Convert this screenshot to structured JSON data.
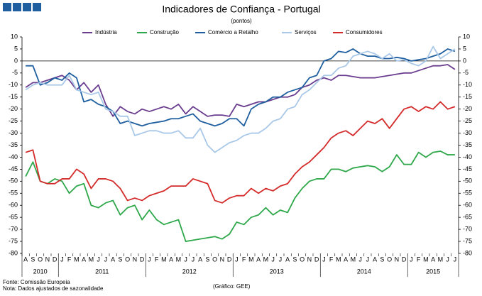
{
  "chart_data": {
    "type": "line",
    "title": "Indicadores de Confiança - Portugal",
    "subtitle": "(pontos)",
    "categories": [
      "A",
      "S",
      "O",
      "N",
      "D",
      "J",
      "F",
      "M",
      "A",
      "M",
      "J",
      "J",
      "A",
      "S",
      "O",
      "N",
      "D",
      "J",
      "F",
      "M",
      "A",
      "M",
      "J",
      "J",
      "A",
      "S",
      "O",
      "N",
      "D",
      "J",
      "F",
      "M",
      "A",
      "M",
      "J",
      "J",
      "A",
      "S",
      "O",
      "N",
      "D",
      "J",
      "F",
      "M",
      "A",
      "M",
      "J",
      "J",
      "A",
      "S",
      "O",
      "N",
      "D",
      "J",
      "F",
      "M",
      "A",
      "M",
      "J",
      "J"
    ],
    "years": [
      "2010",
      "2011",
      "2012",
      "2013",
      "2014",
      "2015"
    ],
    "series": [
      {
        "name": "Indústria",
        "color": "#6a3d8f",
        "values": [
          -11,
          -9,
          -9,
          -8,
          -7,
          -6,
          -8,
          -12,
          -9,
          -13,
          -10,
          -18,
          -23,
          -19,
          -21,
          -22,
          -20,
          -21,
          -20,
          -19,
          -20,
          -18,
          -22,
          -19,
          -21,
          -23,
          -22.5,
          -22.5,
          -23,
          -18,
          -19,
          -18,
          -17,
          -17,
          -16,
          -15,
          -15,
          -14,
          -11,
          -10,
          -8,
          -7,
          -8,
          -6,
          -6,
          -6.5,
          -7,
          -7,
          -7,
          -6.5,
          -6,
          -5.5,
          -5,
          -5,
          -4,
          -3,
          -2,
          -2,
          -1.5,
          -3.5
        ]
      },
      {
        "name": "Construção",
        "color": "#2ea84a",
        "values": [
          -48,
          -42,
          -50,
          -51,
          -49,
          -50,
          -55,
          -52,
          -51,
          -60,
          -61,
          -59,
          -58,
          -64,
          -61,
          -60,
          -66,
          -62,
          -66,
          -68,
          -67,
          -66,
          -75,
          -74.5,
          -74,
          -73.5,
          -73,
          -74,
          -72,
          -67,
          -68,
          -65,
          -64,
          -61,
          -64,
          -62,
          -63,
          -57,
          -53,
          -50,
          -49,
          -49,
          -45,
          -45,
          -46,
          -44.5,
          -44,
          -43.5,
          -44,
          -46,
          -44,
          -39,
          -43,
          -43,
          -38,
          -40,
          -38,
          -37.5,
          -39,
          -39
        ]
      },
      {
        "name": "Comércio a Retalho",
        "color": "#1f5fa0",
        "values": [
          -2,
          -2,
          -10,
          -9,
          -7,
          -8,
          -5,
          -7,
          -17,
          -16,
          -18,
          -19,
          -21,
          -26,
          -25,
          -26,
          -27,
          -26,
          -25.5,
          -25,
          -24,
          -24,
          -23,
          -22,
          -25,
          -26,
          -27,
          -26,
          -24,
          -24,
          -27,
          -20,
          -18,
          -17,
          -15,
          -15,
          -13,
          -12,
          -11,
          -7,
          -6,
          0,
          1,
          4,
          3.5,
          5,
          3,
          2,
          2,
          1,
          1,
          1.5,
          1,
          0,
          0.5,
          1,
          2,
          3,
          5,
          4
        ]
      },
      {
        "name": "Serviços",
        "color": "#a9c8e8",
        "values": [
          -12,
          -10,
          -9,
          -10,
          -10,
          -10,
          -6,
          -12,
          -13,
          -14,
          -13,
          -20,
          -21,
          -23,
          -23,
          -31,
          -30,
          -29,
          -29,
          -30,
          -30,
          -29,
          -32,
          -32,
          -28,
          -35,
          -38,
          -36,
          -34,
          -33,
          -31,
          -30,
          -30,
          -28,
          -25,
          -24,
          -20,
          -19,
          -14,
          -12,
          -9,
          -6,
          -6,
          -3,
          -2,
          2,
          3,
          4,
          3,
          1,
          3,
          0,
          0.5,
          -1,
          -2,
          0,
          6,
          1,
          3,
          5
        ]
      },
      {
        "name": "Consumidores",
        "color": "#d42a2a",
        "values": [
          -38,
          -37,
          -50,
          -51,
          -51,
          -49,
          -49,
          -45,
          -47,
          -53,
          -49,
          -49,
          -50,
          -53,
          -58,
          -57,
          -58,
          -56,
          -55,
          -54,
          -52,
          -52,
          -52,
          -49,
          -50,
          -51,
          -58,
          -59,
          -57,
          -56,
          -56,
          -53,
          -55,
          -53,
          -54,
          -52,
          -51,
          -47,
          -44,
          -42,
          -39,
          -36,
          -32,
          -30,
          -29,
          -31,
          -28,
          -25,
          -26,
          -24,
          -28,
          -24,
          -20,
          -19,
          -21,
          -19,
          -20,
          -17,
          -20,
          -19
        ]
      }
    ],
    "ylim": [
      -80,
      10
    ],
    "yticks": [
      -80,
      -75,
      -70,
      -65,
      -60,
      -55,
      -50,
      -45,
      -40,
      -35,
      -30,
      -25,
      -20,
      -15,
      -10,
      -5,
      0,
      5,
      10
    ],
    "grid": false,
    "notes": [
      "Fonte: Comissão Europeia",
      "Nota: Dados ajustados de sazonalidade"
    ],
    "credit": "(Gráfico: GEE)"
  }
}
